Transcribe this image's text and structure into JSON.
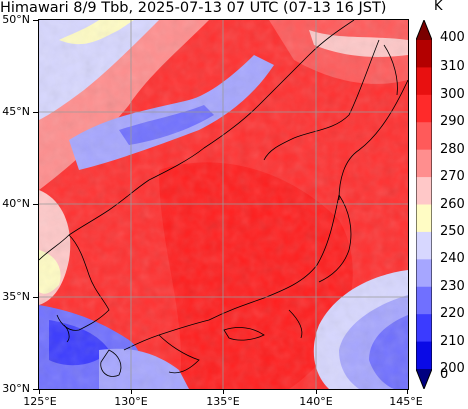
{
  "title": "Himawari 8/9 Tbb, 2025-07-13 07 UTC (07-13 16 JST)",
  "map": {
    "lon_range": [
      125,
      145
    ],
    "lat_range": [
      30,
      50
    ],
    "lat_labels": [
      "50°N",
      "45°N",
      "40°N",
      "35°N",
      "30°N"
    ],
    "lon_labels": [
      "125°E",
      "130°E",
      "135°E",
      "140°E",
      "145°E"
    ],
    "grid": true
  },
  "colorbar": {
    "unit": "K",
    "labels": [
      "400",
      "310",
      "300",
      "290",
      "280",
      "270",
      "260",
      "250",
      "240",
      "230",
      "220",
      "210",
      "200",
      "0"
    ],
    "colors": [
      "#7a0000",
      "#b30000",
      "#e81010",
      "#ff2a2a",
      "#ff5a5a",
      "#ff8e8e",
      "#ffc8c8",
      "#fffcc4",
      "#d7d7ff",
      "#a6a6ff",
      "#7070ff",
      "#3b3bff",
      "#0a0ae6",
      "#000080"
    ]
  }
}
